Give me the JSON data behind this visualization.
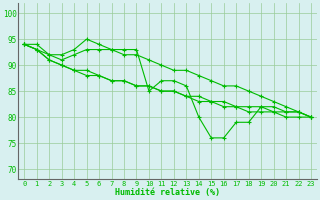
{
  "x": [
    0,
    1,
    2,
    3,
    4,
    5,
    6,
    7,
    8,
    9,
    10,
    11,
    12,
    13,
    14,
    15,
    16,
    17,
    18,
    19,
    20,
    21,
    22,
    23
  ],
  "line1": [
    94,
    94,
    92,
    92,
    93,
    95,
    94,
    93,
    93,
    93,
    85,
    87,
    87,
    86,
    80,
    76,
    76,
    79,
    79,
    82,
    81,
    81,
    81,
    80
  ],
  "line2": [
    94,
    93,
    91,
    90,
    89,
    89,
    88,
    87,
    87,
    86,
    86,
    85,
    85,
    84,
    84,
    83,
    83,
    82,
    82,
    82,
    82,
    81,
    81,
    80
  ],
  "line3": [
    94,
    93,
    91,
    90,
    89,
    88,
    88,
    87,
    87,
    86,
    86,
    85,
    85,
    84,
    83,
    83,
    82,
    82,
    81,
    81,
    81,
    80,
    80,
    80
  ],
  "line4": [
    94,
    93,
    92,
    91,
    92,
    93,
    93,
    93,
    92,
    92,
    91,
    90,
    89,
    89,
    88,
    87,
    86,
    86,
    85,
    84,
    83,
    82,
    81,
    80
  ],
  "line_color": "#00bb00",
  "bg_color": "#d8f0f0",
  "grid_color": "#99cc99",
  "xlabel": "Humidité relative (%)",
  "yticks": [
    70,
    75,
    80,
    85,
    90,
    95,
    100
  ],
  "ylim": [
    68,
    102
  ],
  "xlim": [
    -0.5,
    23.5
  ],
  "marker_size": 3,
  "lw": 0.8
}
